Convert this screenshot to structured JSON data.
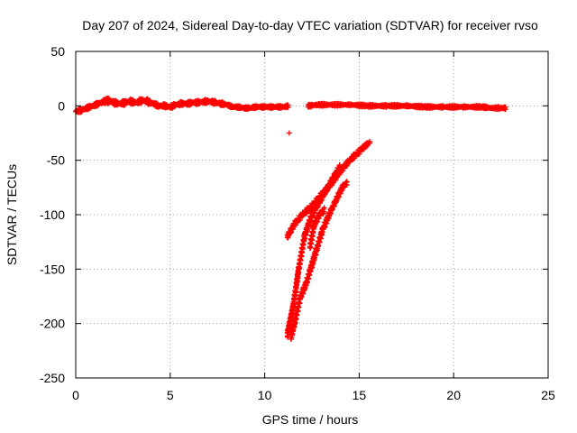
{
  "chart_data": {
    "type": "scatter",
    "title": "Day 207 of 2024, Sidereal Day-to-day VTEC variation (SDTVAR) for receiver rvso",
    "xlabel": "GPS time / hours",
    "ylabel": "SDTVAR / TECUs",
    "xlim": [
      0,
      25
    ],
    "ylim": [
      -250,
      50
    ],
    "xticks": [
      0,
      5,
      10,
      15,
      20,
      25
    ],
    "yticks": [
      -250,
      -200,
      -150,
      -100,
      -50,
      0,
      50
    ],
    "grid": true,
    "marker": "+",
    "series": [
      {
        "name": "SDTVAR",
        "color": "#ff0000",
        "band_segments": [
          {
            "x": [
              0.0,
              0.3,
              0.6,
              0.9,
              1.2,
              1.5,
              1.7,
              2.0,
              2.3,
              2.6,
              2.9,
              3.2,
              3.5,
              3.8,
              4.1,
              4.4,
              4.7,
              5.0,
              5.3,
              5.6,
              5.9,
              6.2,
              6.5,
              6.8,
              7.1,
              7.4,
              7.7,
              8.0,
              8.3,
              8.6,
              8.9,
              9.2,
              9.5,
              9.8,
              10.1,
              10.4,
              10.7,
              11.0,
              11.3
            ],
            "y": [
              -5,
              -4,
              -2,
              0,
              2,
              4,
              5,
              3,
              2,
              3,
              4,
              3,
              5,
              4,
              2,
              0,
              0,
              -1,
              1,
              2,
              2,
              3,
              3,
              4,
              4,
              3,
              2,
              1,
              -1,
              -1,
              -2,
              -2,
              -1,
              -1,
              -1,
              -1,
              -1,
              -1,
              0
            ],
            "half_width": [
              3,
              3,
              3,
              3,
              3,
              3,
              5,
              4,
              3,
              4,
              4,
              3,
              4,
              4,
              3,
              3,
              3,
              3,
              3,
              3,
              3,
              3,
              3,
              3,
              3,
              3,
              3,
              2,
              2,
              2,
              2,
              2,
              2,
              2,
              2,
              2,
              2,
              2,
              2
            ]
          },
          {
            "x": [
              12.3,
              12.8,
              13.5,
              14.5,
              15.5,
              16.5,
              17.5,
              18.5,
              19.5,
              20.5,
              21.5,
              22.0,
              22.5,
              22.8
            ],
            "y": [
              0,
              1,
              1,
              1,
              0,
              0,
              0,
              -1,
              -1,
              -1,
              -1,
              -2,
              -2,
              -2
            ],
            "half_width": [
              2,
              2,
              2,
              2,
              2,
              2,
              2,
              2,
              2,
              2,
              2,
              2,
              2,
              2
            ]
          },
          {
            "x": [
              11.2,
              11.6,
              12.0,
              12.5,
              13.0,
              13.5,
              14.0,
              14.5,
              15.0,
              15.3,
              15.6
            ],
            "y": [
              -120,
              -108,
              -100,
              -92,
              -82,
              -72,
              -60,
              -50,
              -42,
              -37,
              -33
            ],
            "half_width": [
              4,
              4,
              4,
              4,
              4,
              4,
              4,
              4,
              4,
              3,
              3
            ]
          },
          {
            "x": [
              11.2,
              11.5,
              11.8,
              12.1,
              12.5,
              13.0,
              13.5,
              14.0
            ],
            "y": [
              -210,
              -185,
              -150,
              -120,
              -100,
              -85,
              -70,
              -55
            ],
            "half_width": [
              6,
              6,
              5,
              5,
              5,
              4,
              4,
              4
            ]
          },
          {
            "x": [
              11.4,
              11.6,
              11.9,
              12.2,
              12.6,
              13.1,
              13.6,
              14.1,
              14.4
            ],
            "y": [
              -212,
              -198,
              -175,
              -163,
              -140,
              -112,
              -93,
              -75,
              -70
            ],
            "half_width": [
              5,
              5,
              5,
              5,
              5,
              5,
              4,
              4,
              3
            ]
          },
          {
            "x": [
              12.4,
              12.6,
              12.9,
              13.2
            ],
            "y": [
              -130,
              -110,
              -100,
              -95
            ],
            "half_width": [
              5,
              5,
              4,
              4
            ]
          }
        ],
        "isolated_points": [
          {
            "x": 11.3,
            "y": -25
          }
        ]
      }
    ]
  }
}
